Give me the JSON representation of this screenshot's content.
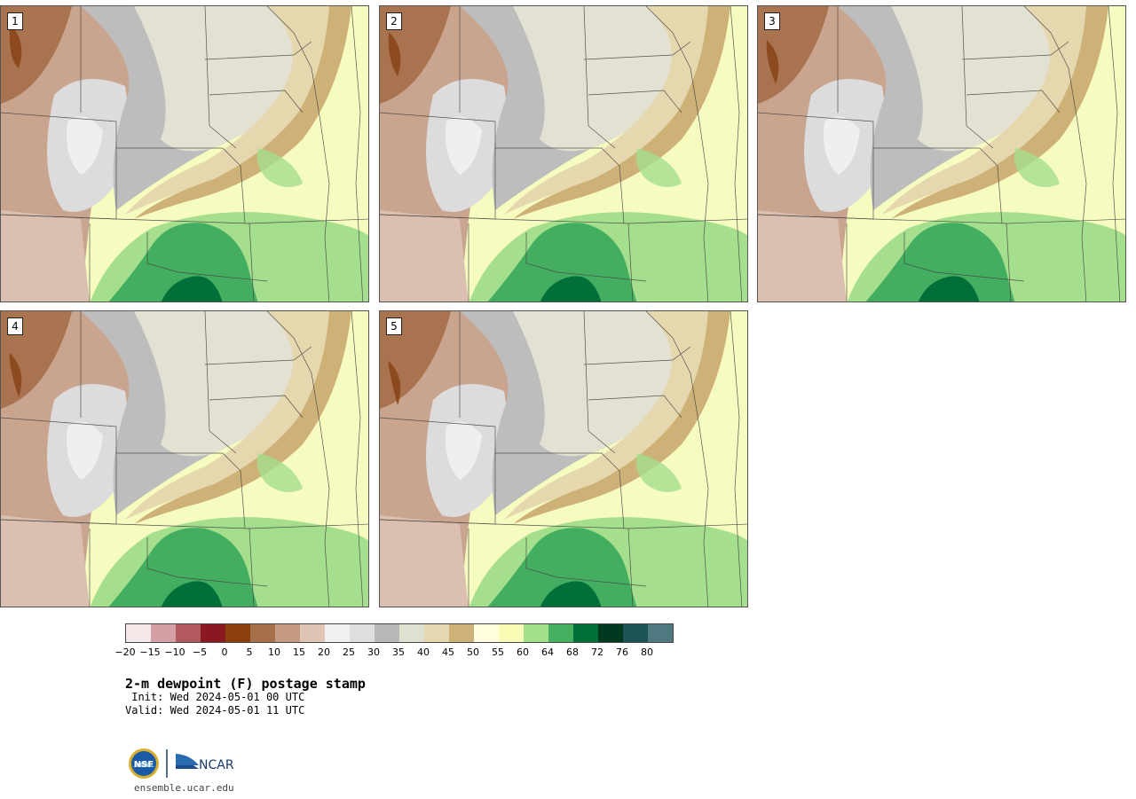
{
  "panels": [
    {
      "label": "1"
    },
    {
      "label": "2"
    },
    {
      "label": "3"
    },
    {
      "label": "4"
    },
    {
      "label": "5"
    }
  ],
  "colorbar": {
    "colors": [
      "#f5e8e8",
      "#d4a0a5",
      "#b25a60",
      "#8a1820",
      "#8c4010",
      "#a8704a",
      "#c49a80",
      "#e0c4b4",
      "#f0f0f0",
      "#dedede",
      "#b8b8b8",
      "#e0e0d0",
      "#e6d8b0",
      "#cdb278",
      "#ffffe0",
      "#f8fcb4",
      "#a4e08c",
      "#44b060",
      "#007038",
      "#003820",
      "#1c5454",
      "#507880"
    ],
    "ticks": [
      "−20",
      "−15",
      "−10",
      "−5",
      "0",
      "5",
      "10",
      "15",
      "20",
      "25",
      "30",
      "35",
      "40",
      "45",
      "50",
      "55",
      "60",
      "64",
      "68",
      "72",
      "76",
      "80"
    ]
  },
  "title": "2-m dewpoint (F) postage stamp",
  "init": " Init: Wed 2024-05-01 00 UTC",
  "valid": "Valid: Wed 2024-05-01 11 UTC",
  "logo": {
    "nsf": "NSF",
    "ncar": "NCAR"
  },
  "url": "ensemble.ucar.edu"
}
